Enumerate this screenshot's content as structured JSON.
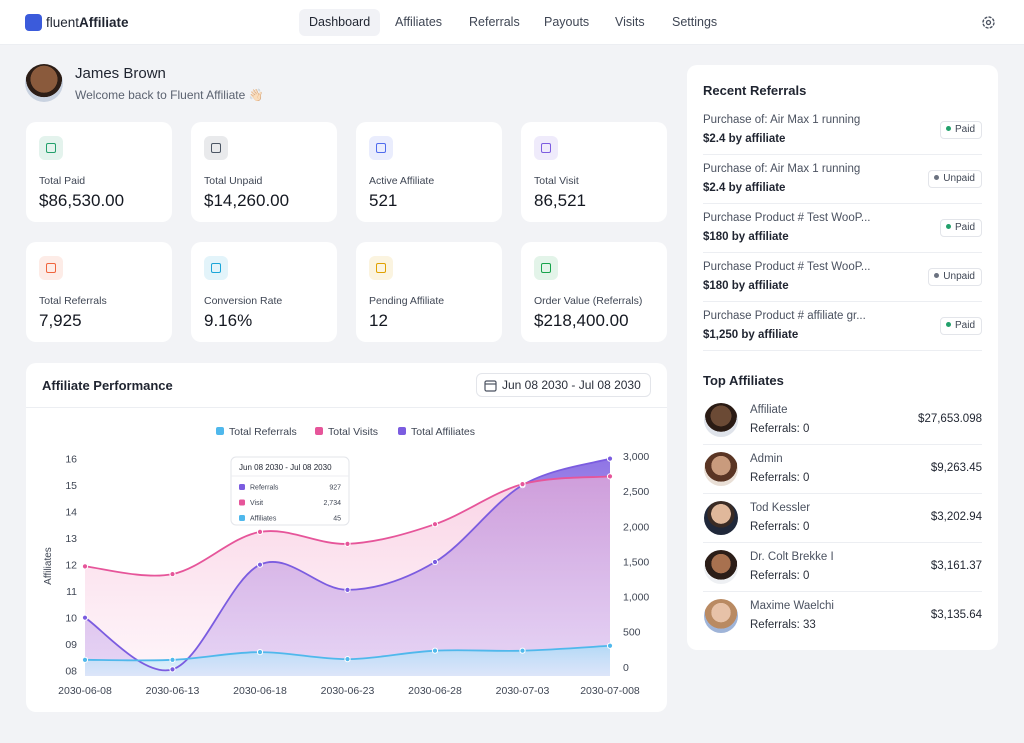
{
  "header": {
    "brand": {
      "light": "fluent",
      "bold": "Affiliate"
    },
    "nav": [
      "Dashboard",
      "Affiliates",
      "Referrals",
      "Payouts",
      "Visits",
      "Settings"
    ]
  },
  "user": {
    "name": "James Brown",
    "welcome": "Welcome back to Fluent Affiliate 👋🏻"
  },
  "stats": [
    {
      "label": "Total Paid",
      "value": "$86,530.00",
      "color": "#22a06b"
    },
    {
      "label": "Total Unpaid",
      "value": "$14,260.00",
      "color": "#4b5563"
    },
    {
      "label": "Active Affiliate",
      "value": "521",
      "color": "#4f6bed"
    },
    {
      "label": "Total Visit",
      "value": "86,521",
      "color": "#7c5ce0"
    },
    {
      "label": "Total Referrals",
      "value": "7,925",
      "color": "#f0643c"
    },
    {
      "label": "Conversion Rate",
      "value": "9.16%",
      "color": "#1aa5d8"
    },
    {
      "label": "Pending Affiliate",
      "value": "12",
      "color": "#e0a100"
    },
    {
      "label": "Order Value (Referrals)",
      "value": "$218,400.00",
      "color": "#16a34a"
    }
  ],
  "performance": {
    "title": "Affiliate Performance",
    "date_range": "Jun 08 2030 - Jul 08 2030",
    "chart": {
      "type": "line",
      "y_label": "Affiliates",
      "categories": [
        "2030-06-08",
        "2030-06-13",
        "2030-06-18",
        "2030-06-23",
        "2030-06-28",
        "2030-07-03",
        "2030-07-008"
      ],
      "series": [
        {
          "name": "Total Referrals",
          "color": "#4fb8ec",
          "axis": "y2",
          "values": [
            100,
            100,
            210,
            110,
            230,
            230,
            300
          ]
        },
        {
          "name": "Total Visits",
          "color": "#e6559a",
          "axis": "y2",
          "values": [
            1430,
            1320,
            1920,
            1750,
            2030,
            2600,
            2710
          ]
        },
        {
          "name": "Total Affiliates",
          "color": "#7b5ce0",
          "values": [
            10,
            8.05,
            12,
            11.05,
            12.1,
            15,
            16
          ]
        }
      ],
      "ylim": [
        7.8,
        16.1
      ],
      "yticks": [
        {
          "value": 8,
          "label": "08"
        },
        {
          "value": 9,
          "label": "09"
        },
        10,
        11,
        12,
        13,
        14,
        15,
        16
      ],
      "y2lim": [
        -130,
        3000
      ],
      "y2ticks": [
        0,
        500,
        {
          "value": 1000,
          "label": "1,000"
        },
        {
          "value": 1500,
          "label": "1,500"
        },
        {
          "value": 2000,
          "label": "2,000"
        },
        {
          "value": 2500,
          "label": "2,500"
        },
        {
          "value": 3000,
          "label": "3,000"
        }
      ],
      "grid": false
    },
    "tooltip": {
      "title": "Jun 08 2030 - Jul 08 2030",
      "rows": [
        {
          "label": "Referrals",
          "value": "927",
          "color": "#7b5ce0"
        },
        {
          "label": "Visit",
          "value": "2,734",
          "color": "#e6559a"
        },
        {
          "label": "Affiliates",
          "value": "45",
          "color": "#4fb8ec"
        }
      ]
    }
  },
  "recent_referrals": {
    "title": "Recent Referrals",
    "items": [
      {
        "title": "Purchase of: Air Max 1 running",
        "amount": "$2.4 by affiliate",
        "status": "Paid",
        "status_color": "#22a06b"
      },
      {
        "title": "Purchase of: Air Max 1 running",
        "amount": "$2.4 by affiliate",
        "status": "Unpaid",
        "status_color": "#6b7280"
      },
      {
        "title": "Purchase Product # Test WooP...",
        "amount": "$180 by affiliate",
        "status": "Paid",
        "status_color": "#22a06b"
      },
      {
        "title": "Purchase Product # Test WooP...",
        "amount": "$180 by affiliate",
        "status": "Unpaid",
        "status_color": "#6b7280"
      },
      {
        "title": "Purchase Product # affiliate gr...",
        "amount": "$1,250 by affiliate",
        "status": "Paid",
        "status_color": "#22a06b"
      }
    ]
  },
  "top_affiliates": {
    "title": "Top Affiliates",
    "items": [
      {
        "name": "Affiliate",
        "referrals": "Referrals: 0",
        "amount": "$27,653.098"
      },
      {
        "name": "Admin",
        "referrals": "Referrals: 0",
        "amount": "$9,263.45"
      },
      {
        "name": "Tod Kessler",
        "referrals": "Referrals: 0",
        "amount": "$3,202.94"
      },
      {
        "name": "Dr. Colt Brekke I",
        "referrals": "Referrals: 0",
        "amount": "$3,161.37"
      },
      {
        "name": "Maxime Waelchi",
        "referrals": "Referrals: 33",
        "amount": "$3,135.64"
      }
    ]
  }
}
